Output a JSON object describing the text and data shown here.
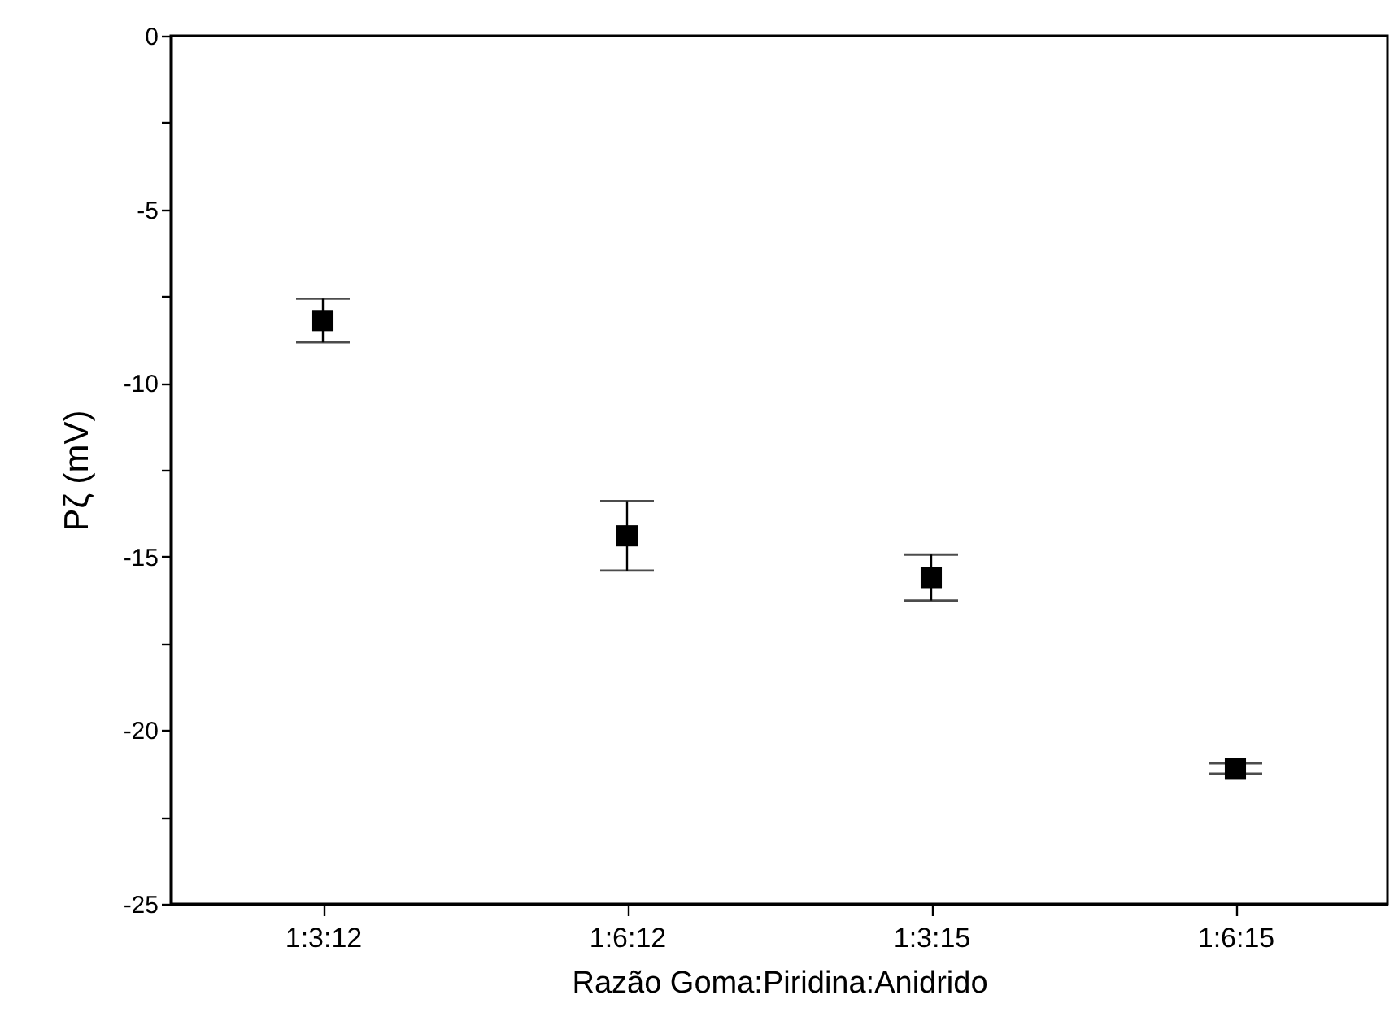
{
  "chart_data": {
    "type": "scatter",
    "xlabel": "Razão Goma:Piridina:Anidrido",
    "ylabel": "Pζ (mV)",
    "categories": [
      "1:3:12",
      "1:6:12",
      "1:3:15",
      "1:6:15"
    ],
    "values": [
      -8.2,
      -14.4,
      -15.6,
      -21.1
    ],
    "errors": [
      0.63,
      1.0,
      0.66,
      0.15
    ],
    "color": "#000000",
    "marker": "square",
    "ylim": [
      -25,
      0
    ],
    "yticks": [
      -25,
      {
        "value": -22.5,
        "label": null
      },
      -20,
      {
        "value": -17.5,
        "label": null
      },
      -15,
      {
        "value": -12.5,
        "label": null
      },
      -10,
      {
        "value": -7.5,
        "label": null
      },
      -5,
      {
        "value": -2.5,
        "label": null
      },
      0
    ],
    "grid": false
  }
}
